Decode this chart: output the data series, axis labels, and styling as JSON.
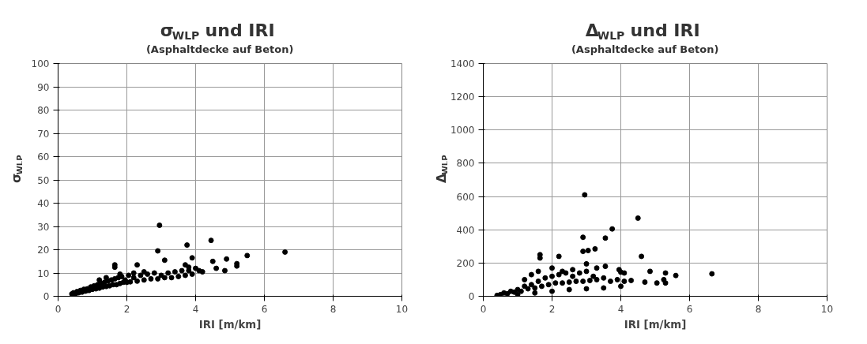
{
  "chart_data": [
    {
      "type": "scatter",
      "title": "σ$_{WLP}$ und IRI",
      "subtitle": "(Asphaltdecke auf Beton)",
      "xlabel": "IRI [m/km]",
      "ylabel": "σ$_{WLP}$",
      "xlim": [
        0,
        10
      ],
      "ylim": [
        0,
        100
      ],
      "xticks": [
        0,
        2,
        4,
        6,
        8,
        10
      ],
      "yticks": [
        0,
        10,
        20,
        30,
        40,
        50,
        60,
        70,
        80,
        90,
        100
      ],
      "grid": true,
      "marker": "circle",
      "series": [
        {
          "color": "#000000",
          "x": [
            0.4,
            0.45,
            0.5,
            0.55,
            0.6,
            0.65,
            0.7,
            0.75,
            0.8,
            0.85,
            0.9,
            0.95,
            1.0,
            1.05,
            1.1,
            1.15,
            1.2,
            1.25,
            1.3,
            1.35,
            1.4,
            1.45,
            1.5,
            1.55,
            1.6,
            1.65,
            1.7,
            1.75,
            1.8,
            1.85,
            1.9,
            1.95,
            2.0,
            2.05,
            2.1,
            2.2,
            2.3,
            2.4,
            2.5,
            2.6,
            2.7,
            2.8,
            2.9,
            3.0,
            3.1,
            3.2,
            3.3,
            3.4,
            3.5,
            3.6,
            3.7,
            3.8,
            3.9,
            4.0,
            4.1,
            4.2,
            1.2,
            1.4,
            1.8,
            2.2,
            2.5,
            3.8,
            2.95,
            4.45,
            3.75,
            2.9,
            6.6,
            5.5,
            3.1,
            3.7,
            4.5,
            4.9,
            1.65,
            1.65,
            2.3,
            3.9,
            5.2,
            5.2,
            4.85,
            4.6
          ],
          "values": [
            1,
            1.5,
            0.8,
            2,
            1.5,
            2.5,
            1.8,
            3,
            2.2,
            3.2,
            2.5,
            4,
            3,
            4.5,
            3.2,
            5,
            3.5,
            5.5,
            4,
            6,
            4.2,
            6.5,
            4.5,
            7,
            5,
            7.5,
            5,
            8,
            5.5,
            8.5,
            6,
            7,
            6,
            9,
            6.2,
            8,
            6.5,
            9,
            7,
            9.5,
            7.5,
            10,
            7.5,
            9,
            8,
            10,
            8,
            10.5,
            8.5,
            11,
            9,
            11,
            9.5,
            12,
            11,
            10.5,
            7,
            8,
            9.5,
            10,
            10.5,
            12.5,
            30.5,
            24,
            22,
            19.5,
            19,
            17.5,
            15.5,
            13.5,
            15,
            16,
            13.5,
            12.5,
            13.5,
            16.5,
            14,
            13,
            11,
            12
          ]
        }
      ]
    },
    {
      "type": "scatter",
      "title": "Δ$_{WLP}$ und IRI",
      "subtitle": "(Asphaltdecke auf Beton)",
      "xlabel": "IRI [m/km]",
      "ylabel": "Δ$_{WLP}$",
      "xlim": [
        0,
        10
      ],
      "ylim": [
        0,
        1400
      ],
      "xticks": [
        0,
        2,
        4,
        6,
        8,
        10
      ],
      "yticks": [
        0,
        200,
        400,
        600,
        800,
        1000,
        1200,
        1400
      ],
      "grid": true,
      "marker": "circle",
      "series": [
        {
          "color": "#000000",
          "x": [
            0.4,
            0.5,
            0.6,
            0.7,
            0.8,
            0.9,
            1.0,
            1.1,
            1.2,
            1.3,
            1.4,
            1.5,
            1.6,
            1.7,
            1.8,
            1.9,
            2.0,
            2.1,
            2.2,
            2.3,
            2.4,
            2.5,
            2.6,
            2.7,
            2.8,
            2.9,
            3.0,
            3.1,
            3.2,
            3.3,
            3.5,
            3.7,
            3.9,
            4.1,
            4.3,
            1.2,
            1.4,
            1.6,
            2.0,
            2.3,
            2.6,
            3.3,
            1.0,
            1.5,
            2.0,
            2.5,
            3.0,
            3.5,
            4.0,
            2.95,
            4.5,
            3.75,
            3.55,
            2.9,
            3.25,
            2.9,
            3.05,
            1.65,
            1.65,
            2.2,
            4.6,
            3.0,
            6.65,
            5.3,
            5.6,
            4.85,
            5.25,
            4.7,
            5.05,
            5.3,
            3.55,
            3.95,
            4.0,
            4.1
          ],
          "values": [
            5,
            10,
            20,
            15,
            30,
            25,
            40,
            30,
            60,
            45,
            70,
            50,
            90,
            60,
            110,
            70,
            120,
            80,
            130,
            80,
            140,
            85,
            120,
            90,
            140,
            90,
            150,
            95,
            120,
            100,
            110,
            90,
            100,
            90,
            95,
            100,
            130,
            150,
            170,
            150,
            160,
            170,
            10,
            20,
            30,
            40,
            45,
            50,
            60,
            610,
            470,
            405,
            350,
            355,
            285,
            270,
            275,
            250,
            230,
            240,
            240,
            195,
            135,
            140,
            125,
            150,
            100,
            85,
            80,
            80,
            180,
            160,
            145,
            140
          ]
        }
      ]
    }
  ]
}
